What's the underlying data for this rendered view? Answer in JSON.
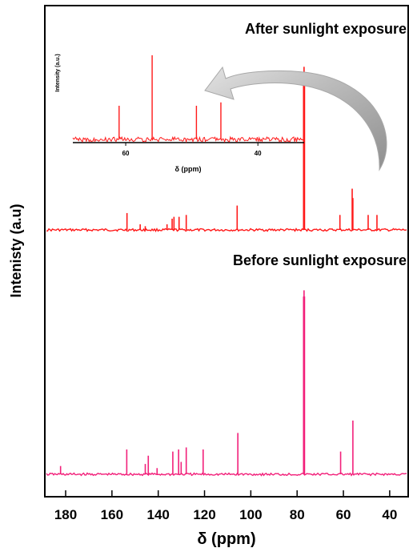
{
  "chart_data": {
    "type": "line",
    "xlabel": "δ (ppm)",
    "ylabel": "Intenisty (a.u)",
    "xlim": [
      189,
      32
    ],
    "x_ticks": [
      "180",
      "160",
      "140",
      "120",
      "100",
      "80",
      "60",
      "40"
    ],
    "series": [
      {
        "name": "After sunlight exposure",
        "color": "#ff1a1a",
        "baseline_noise": 0.6,
        "peaks": [
          {
            "x": 153.5,
            "y": 9
          },
          {
            "x": 147.8,
            "y": 3
          },
          {
            "x": 145.6,
            "y": 2
          },
          {
            "x": 136.2,
            "y": 3
          },
          {
            "x": 134.0,
            "y": 6
          },
          {
            "x": 133.2,
            "y": 7
          },
          {
            "x": 131.0,
            "y": 7
          },
          {
            "x": 127.9,
            "y": 8
          },
          {
            "x": 105.9,
            "y": 13
          },
          {
            "x": 77.2,
            "y": 84
          },
          {
            "x": 77.0,
            "y": 87
          },
          {
            "x": 76.8,
            "y": 84
          },
          {
            "x": 61.5,
            "y": 8
          },
          {
            "x": 56.2,
            "y": 22
          },
          {
            "x": 55.9,
            "y": 17
          },
          {
            "x": 49.3,
            "y": 8
          },
          {
            "x": 45.5,
            "y": 8
          }
        ]
      },
      {
        "name": "Before sunlight exposure",
        "color": "#f2207a",
        "baseline_noise": 0.6,
        "peaks": [
          {
            "x": 182.2,
            "y": 4
          },
          {
            "x": 153.6,
            "y": 12
          },
          {
            "x": 145.6,
            "y": 5
          },
          {
            "x": 144.3,
            "y": 9
          },
          {
            "x": 140.5,
            "y": 3
          },
          {
            "x": 133.7,
            "y": 11
          },
          {
            "x": 131.2,
            "y": 12
          },
          {
            "x": 130.1,
            "y": 6
          },
          {
            "x": 127.9,
            "y": 13
          },
          {
            "x": 120.6,
            "y": 12
          },
          {
            "x": 105.6,
            "y": 20
          },
          {
            "x": 77.2,
            "y": 86
          },
          {
            "x": 77.0,
            "y": 89
          },
          {
            "x": 76.8,
            "y": 86
          },
          {
            "x": 61.2,
            "y": 11
          },
          {
            "x": 55.9,
            "y": 26
          }
        ]
      }
    ],
    "inset": {
      "xlabel": "δ (ppm)",
      "ylabel": "Intensity (a.u.)",
      "xlim": [
        68,
        33
      ],
      "x_ticks": [
        "60",
        "40"
      ],
      "color": "#ff1a1a",
      "peaks": [
        {
          "x": 61.0,
          "y": 40
        },
        {
          "x": 56.0,
          "y": 100
        },
        {
          "x": 49.3,
          "y": 40
        },
        {
          "x": 45.6,
          "y": 44
        }
      ]
    }
  }
}
